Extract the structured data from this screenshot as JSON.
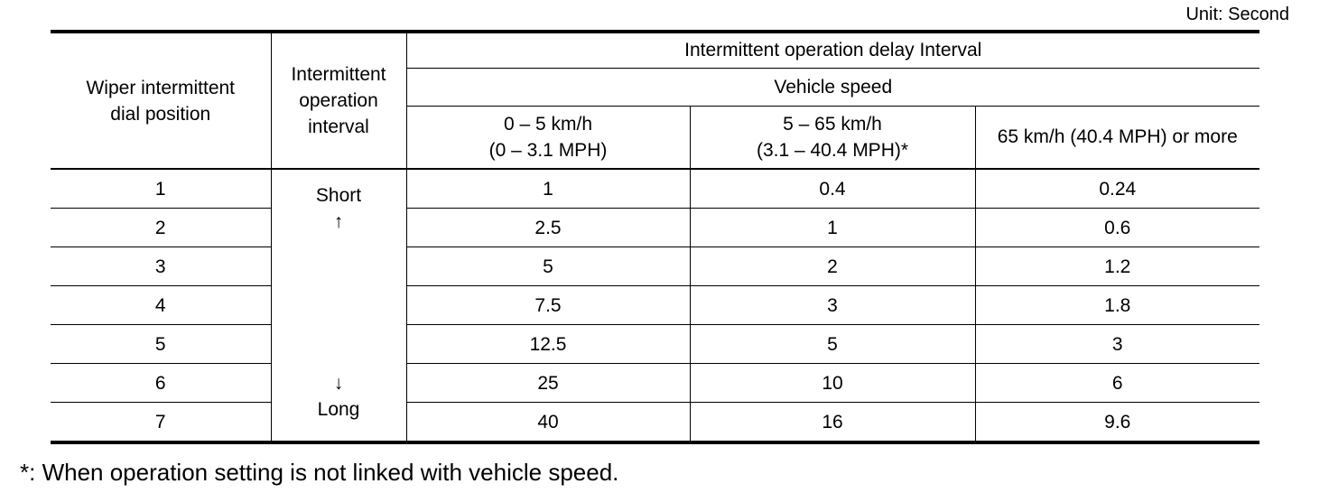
{
  "unit_label": "Unit: Second",
  "headers": {
    "dial_position": [
      "Wiper intermittent",
      "dial position"
    ],
    "operation_interval": [
      "Intermittent",
      "operation",
      "interval"
    ],
    "delay_interval": "Intermittent operation delay Interval",
    "vehicle_speed": "Vehicle speed",
    "speed_ranges": [
      [
        "0 – 5 km/h",
        "(0 – 3.1 MPH)"
      ],
      [
        "5 – 65 km/h",
        "(3.1 – 40.4 MPH)*"
      ],
      [
        "65 km/h (40.4 MPH) or more"
      ]
    ]
  },
  "interval_labels": {
    "short": "Short",
    "short_arrow": "↑",
    "long_arrow": "↓",
    "long": "Long"
  },
  "rows": [
    {
      "position": "1",
      "speed_0_5": "1",
      "speed_5_65": "0.4",
      "speed_65_plus": "0.24"
    },
    {
      "position": "2",
      "speed_0_5": "2.5",
      "speed_5_65": "1",
      "speed_65_plus": "0.6"
    },
    {
      "position": "3",
      "speed_0_5": "5",
      "speed_5_65": "2",
      "speed_65_plus": "1.2"
    },
    {
      "position": "4",
      "speed_0_5": "7.5",
      "speed_5_65": "3",
      "speed_65_plus": "1.8"
    },
    {
      "position": "5",
      "speed_0_5": "12.5",
      "speed_5_65": "5",
      "speed_65_plus": "3"
    },
    {
      "position": "6",
      "speed_0_5": "25",
      "speed_5_65": "10",
      "speed_65_plus": "6"
    },
    {
      "position": "7",
      "speed_0_5": "40",
      "speed_5_65": "16",
      "speed_65_plus": "9.6"
    }
  ],
  "footnote": "*: When operation setting is not linked with vehicle speed."
}
